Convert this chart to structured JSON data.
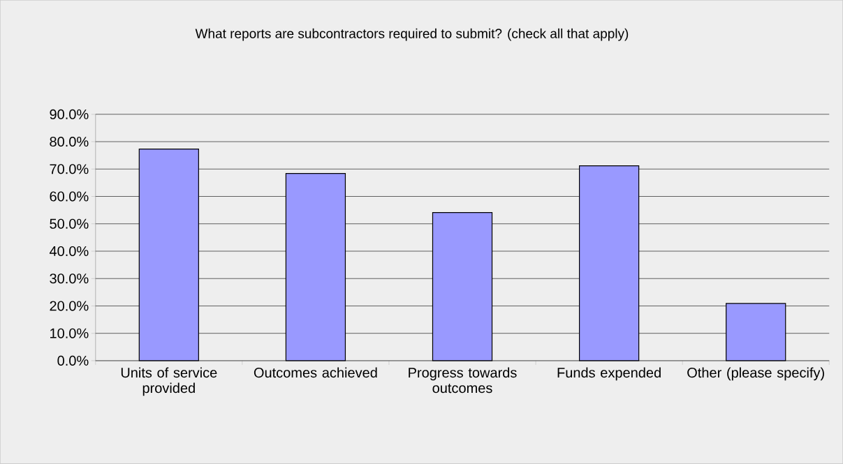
{
  "chart_data": {
    "type": "bar",
    "title": "What reports are subcontractors required to submit? (check all that apply)",
    "categories": [
      "Units of service provided",
      "Outcomes achieved",
      "Progress towards outcomes",
      "Funds expended",
      "Other (please specify)"
    ],
    "values": [
      77.3,
      68.4,
      54.1,
      71.2,
      20.9
    ],
    "color": "#9999ff",
    "ylim": [
      0,
      90
    ],
    "yticks": [
      {
        "value": 0,
        "label": "0.0%"
      },
      {
        "value": 10,
        "label": "10.0%"
      },
      {
        "value": 20,
        "label": "20.0%"
      },
      {
        "value": 30,
        "label": "30.0%"
      },
      {
        "value": 40,
        "label": "40.0%"
      },
      {
        "value": 50,
        "label": "50.0%"
      },
      {
        "value": 60,
        "label": "60.0%"
      },
      {
        "value": 70,
        "label": "70.0%"
      },
      {
        "value": 80,
        "label": "80.0%"
      },
      {
        "value": 90,
        "label": "90.0%"
      }
    ],
    "grid": "y"
  }
}
